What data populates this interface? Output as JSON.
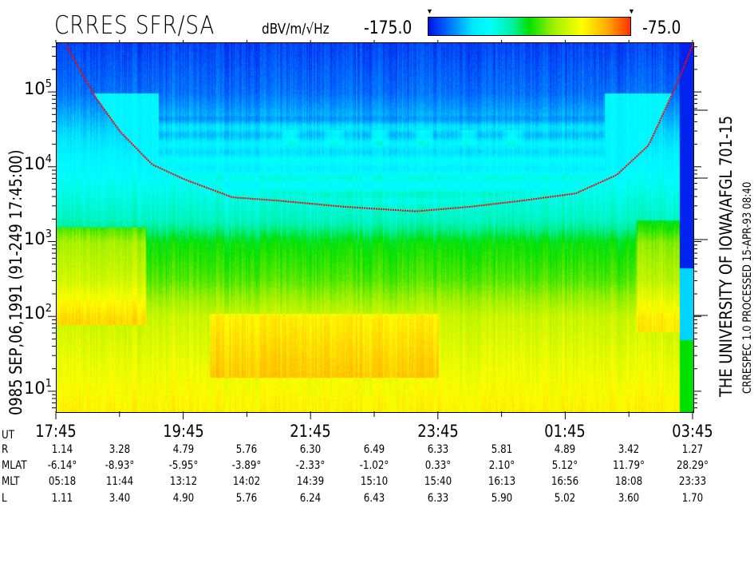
{
  "header": {
    "title": "CRRES SFR/SA",
    "units": "dBV/m/√Hz",
    "colorbar_min_label": "-175.0",
    "colorbar_max_label": "-75.0",
    "colorbar_marker": "▼"
  },
  "left_label": "0985   SEP,06,1991   (91-249 17:45:00)",
  "right_label_main": "THE UNIVERSITY OF IOWA/AFGL 701-15",
  "right_label_sub": "CRRESPEC 1.0   PROCESSED 15-APR-93   08:40",
  "chart_data": {
    "type": "heatmap",
    "title": "CRRES SFR/SA",
    "colorbar": {
      "label": "dBV/m/√Hz",
      "range": [
        -175.0,
        -75.0
      ],
      "colors": [
        "#0000ff",
        "#00ffff",
        "#00e000",
        "#ffff00",
        "#ff2000"
      ]
    },
    "x_axis": {
      "label": "UT",
      "start": "17:45",
      "end": "03:45",
      "tick_labels": [
        "17:45",
        "19:45",
        "21:45",
        "23:45",
        "01:45",
        "03:45"
      ],
      "minor_tick_interval_hours": 1
    },
    "y_axis": {
      "scale": "log",
      "unit": "Hz",
      "range": [
        5.4,
        460000
      ],
      "tick_labels": [
        {
          "base": "10",
          "exp": "1"
        },
        {
          "base": "10",
          "exp": "2"
        },
        {
          "base": "10",
          "exp": "3"
        },
        {
          "base": "10",
          "exp": "4"
        },
        {
          "base": "10",
          "exp": "5"
        }
      ]
    },
    "overlay_trace": {
      "color": "#ff0000",
      "hours_after_start": [
        0.13,
        0.6,
        1.0,
        1.5,
        2.0,
        2.76,
        3.5,
        4.5,
        5.64,
        6.5,
        7.3,
        8.15,
        8.8,
        9.3,
        9.77,
        10.0
      ],
      "frequency_hz": [
        460000,
        90000,
        30000,
        11000,
        7000,
        4000,
        3600,
        3000,
        2600,
        3000,
        3600,
        4500,
        8000,
        20000,
        150000,
        460000
      ]
    }
  },
  "ephemeris": {
    "row_labels": {
      "ut": "UT",
      "r": "R",
      "mlat": "MLAT",
      "mlt": "MLT",
      "l": "L"
    },
    "R": [
      "1.14",
      "3.28",
      "4.79",
      "5.76",
      "6.30",
      "6.49",
      "6.33",
      "5.81",
      "4.89",
      "3.42",
      "1.27"
    ],
    "MLAT": [
      "-6.14°",
      "-8.93°",
      "-5.95°",
      "-3.89°",
      "-2.33°",
      "-1.02°",
      "0.33°",
      "2.10°",
      "5.12°",
      "11.79°",
      "28.29°"
    ],
    "MLT": [
      "05:18",
      "11:44",
      "13:12",
      "14:02",
      "14:39",
      "15:10",
      "15:40",
      "16:13",
      "16:56",
      "18:08",
      "23:33"
    ],
    "L": [
      "1.11",
      "3.40",
      "4.90",
      "5.76",
      "6.24",
      "6.43",
      "6.33",
      "5.90",
      "5.02",
      "3.60",
      "1.70"
    ]
  }
}
